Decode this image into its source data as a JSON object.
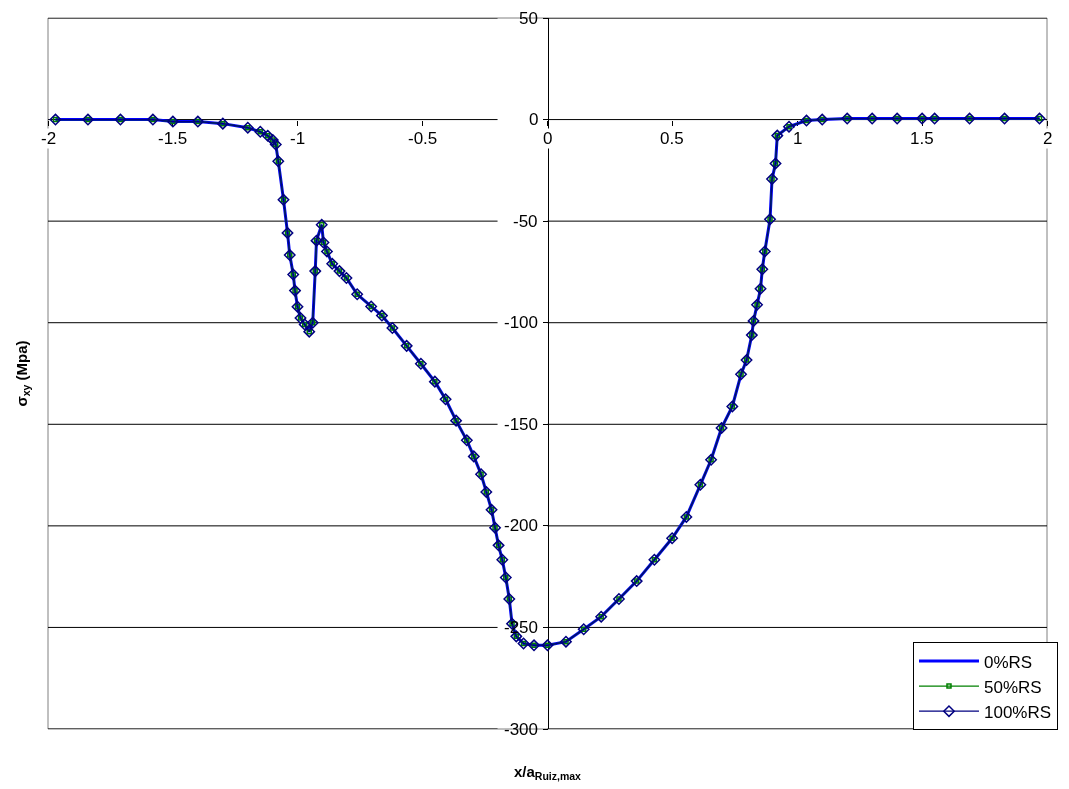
{
  "chart_data": {
    "type": "line",
    "xlabel": "x/a$_{Ruiz,max}$",
    "ylabel": "σ$_{xy}$ (Mpa)",
    "x": [
      -1.97,
      -1.84,
      -1.71,
      -1.58,
      -1.5,
      -1.4,
      -1.3,
      -1.2,
      -1.15,
      -1.12,
      -1.1,
      -1.088,
      -1.078,
      -1.057,
      -1.041,
      -1.032,
      -1.018,
      -1.011,
      -1.001,
      -0.989,
      -0.972,
      -0.954,
      -0.94,
      -0.93,
      -0.925,
      -0.904,
      -0.897,
      -0.883,
      -0.862,
      -0.833,
      -0.805,
      -0.762,
      -0.706,
      -0.663,
      -0.621,
      -0.564,
      -0.507,
      -0.451,
      -0.408,
      -0.366,
      -0.323,
      -0.295,
      -0.266,
      -0.245,
      -0.224,
      -0.21,
      -0.196,
      -0.181,
      -0.167,
      -0.153,
      -0.142,
      -0.125,
      -0.096,
      -0.054,
      0,
      0.074,
      0.145,
      0.215,
      0.286,
      0.357,
      0.428,
      0.499,
      0.556,
      0.612,
      0.655,
      0.697,
      0.74,
      0.775,
      0.797,
      0.818,
      0.825,
      0.839,
      0.853,
      0.86,
      0.87,
      0.891,
      0.899,
      0.913,
      0.92,
      0.967,
      1.037,
      1.1,
      1.2,
      1.3,
      1.4,
      1.5,
      1.55,
      1.69,
      1.83,
      1.97
    ],
    "series": [
      {
        "name": "0%RS",
        "color": "#0000ff",
        "marker": "none",
        "values": [
          0,
          0,
          0,
          0,
          -1,
          -1,
          -2,
          -4,
          -6,
          -8,
          -10,
          -12.3,
          -20.5,
          -39.5,
          -55.8,
          -66.7,
          -76.3,
          -84.2,
          -92.1,
          -97.7,
          -100.9,
          -104.4,
          -100,
          -74.6,
          -59.6,
          -51.8,
          -60.5,
          -64.9,
          -71,
          -74.6,
          -78,
          -86,
          -92,
          -96.5,
          -102.6,
          -111.4,
          -120.2,
          -129,
          -137.7,
          -148.2,
          -157.9,
          -165.8,
          -174.6,
          -183.3,
          -192.1,
          -200.9,
          -209.6,
          -216.7,
          -225.4,
          -236,
          -248.2,
          -254.4,
          -257.9,
          -258.8,
          -258.8,
          -257,
          -250.9,
          -244.7,
          -236,
          -227.2,
          -216.7,
          -206.1,
          -195.6,
          -179.8,
          -167.5,
          -151.8,
          -141.2,
          -125.4,
          -118.4,
          -106.1,
          -99.1,
          -91.2,
          -83.3,
          -73.7,
          -64.9,
          -49.1,
          -29.3,
          -21.6,
          -7.9,
          -3.5,
          -0.5,
          0,
          0.5,
          0.5,
          0.5,
          0.5,
          0.5,
          0.5,
          0.5,
          0.5
        ]
      },
      {
        "name": "50%RS",
        "color": "#008000",
        "marker": "square",
        "values": [
          0,
          0,
          0,
          0,
          -1,
          -1,
          -2,
          -4,
          -6,
          -8,
          -10,
          -12.3,
          -20.5,
          -39.5,
          -55.8,
          -66.7,
          -76.3,
          -84.2,
          -92.1,
          -97.7,
          -100.9,
          -104.4,
          -100,
          -74.6,
          -59.6,
          -51.8,
          -60.5,
          -64.9,
          -71,
          -74.6,
          -78,
          -86,
          -92,
          -96.5,
          -102.6,
          -111.4,
          -120.2,
          -129,
          -137.7,
          -148.2,
          -157.9,
          -165.8,
          -174.6,
          -183.3,
          -192.1,
          -200.9,
          -209.6,
          -216.7,
          -225.4,
          -236,
          -248.2,
          -254.4,
          -257.9,
          -258.8,
          -258.8,
          -257,
          -250.9,
          -244.7,
          -236,
          -227.2,
          -216.7,
          -206.1,
          -195.6,
          -179.8,
          -167.5,
          -151.8,
          -141.2,
          -125.4,
          -118.4,
          -106.1,
          -99.1,
          -91.2,
          -83.3,
          -73.7,
          -64.9,
          -49.1,
          -29.3,
          -21.6,
          -7.9,
          -3.5,
          -0.5,
          0,
          0.5,
          0.5,
          0.5,
          0.5,
          0.5,
          0.5,
          0.5,
          0.5
        ]
      },
      {
        "name": "100%RS",
        "color": "#000080",
        "marker": "diamond",
        "values": [
          0,
          0,
          0,
          0,
          -1,
          -1,
          -2,
          -4,
          -6,
          -8,
          -10,
          -12.3,
          -20.5,
          -39.5,
          -55.8,
          -66.7,
          -76.3,
          -84.2,
          -92.1,
          -97.7,
          -100.9,
          -104.4,
          -100,
          -74.6,
          -59.6,
          -51.8,
          -60.5,
          -64.9,
          -71,
          -74.6,
          -78,
          -86,
          -92,
          -96.5,
          -102.6,
          -111.4,
          -120.2,
          -129,
          -137.7,
          -148.2,
          -157.9,
          -165.8,
          -174.6,
          -183.3,
          -192.1,
          -200.9,
          -209.6,
          -216.7,
          -225.4,
          -236,
          -248.2,
          -254.4,
          -257.9,
          -258.8,
          -258.8,
          -257,
          -250.9,
          -244.7,
          -236,
          -227.2,
          -216.7,
          -206.1,
          -195.6,
          -179.8,
          -167.5,
          -151.8,
          -141.2,
          -125.4,
          -118.4,
          -106.1,
          -99.1,
          -91.2,
          -83.3,
          -73.7,
          -64.9,
          -49.1,
          -29.3,
          -21.6,
          -7.9,
          -3.5,
          -0.5,
          0,
          0.5,
          0.5,
          0.5,
          0.5,
          0.5,
          0.5,
          0.5,
          0.5
        ]
      }
    ],
    "xlim": [
      -2,
      2
    ],
    "xticks": [
      -2,
      -1.5,
      -1,
      -0.5,
      0,
      0.5,
      1,
      1.5,
      2
    ],
    "ylim": [
      -300,
      50
    ],
    "yticks": [
      -300,
      -250,
      -200,
      -150,
      -100,
      -50,
      0,
      50
    ],
    "grid": "y",
    "legend": "bottom right",
    "line_style": "solid"
  }
}
